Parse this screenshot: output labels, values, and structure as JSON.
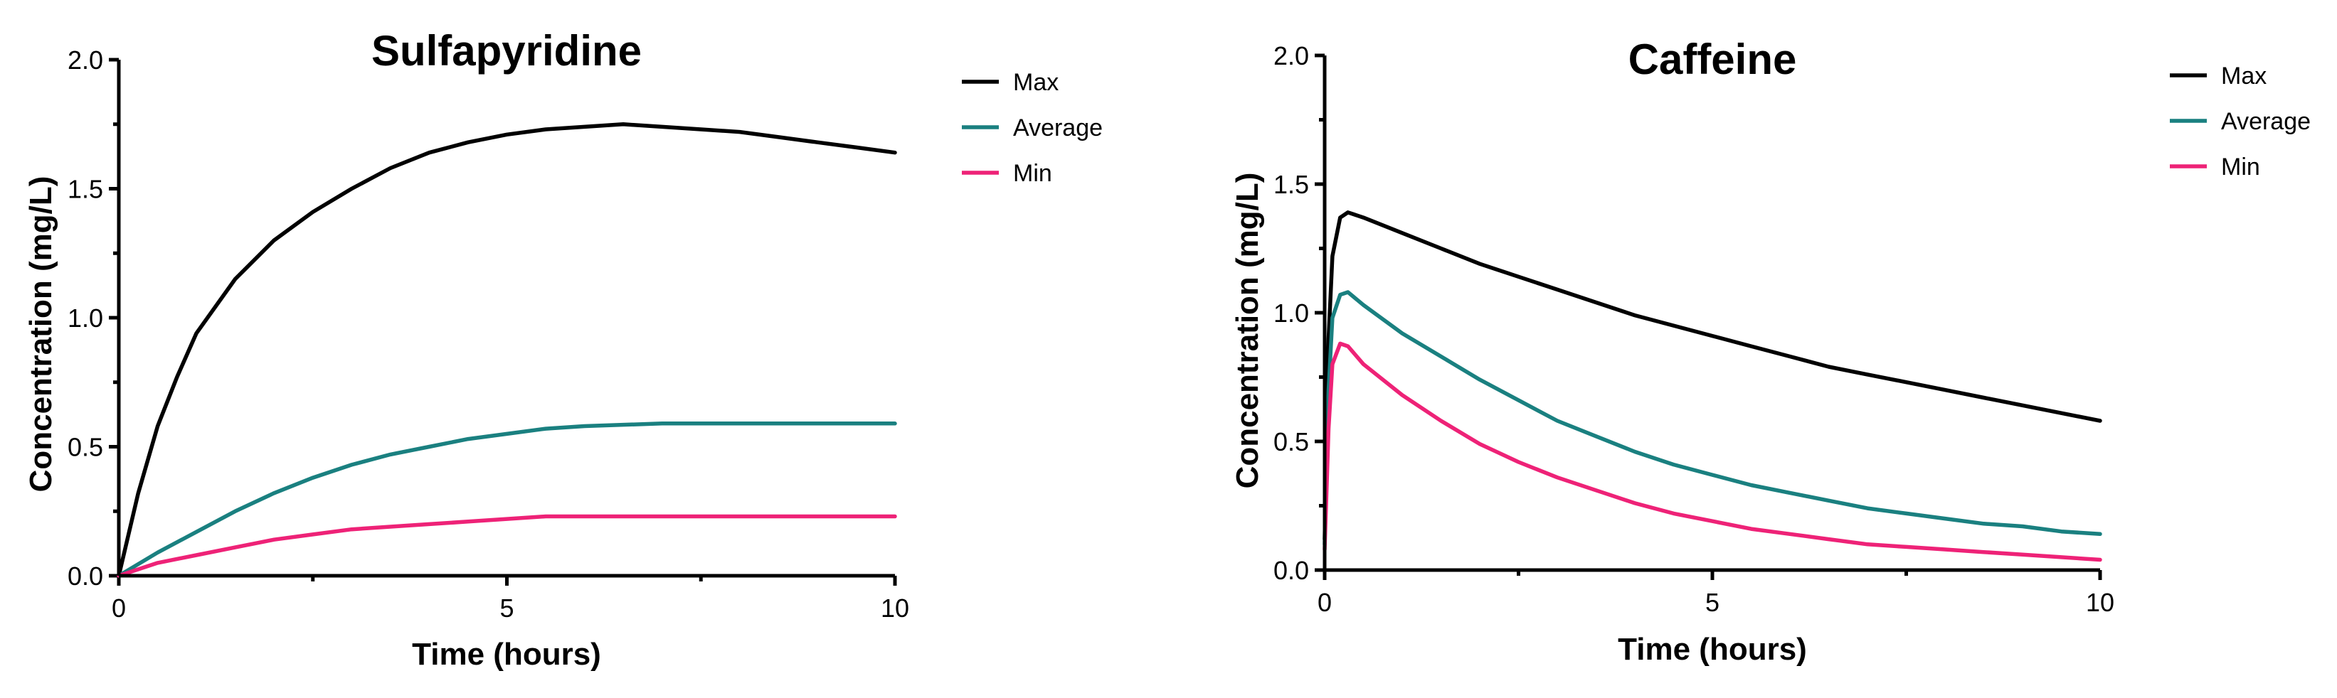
{
  "chart_data": [
    {
      "type": "line",
      "title": "Sulfapyridine",
      "xlabel": "Time (hours)",
      "ylabel": "Concentration (mg/L)",
      "xlim": [
        0,
        10
      ],
      "ylim": [
        0,
        2.0
      ],
      "xticks": [
        0,
        5,
        10
      ],
      "xtick_labels": [
        "0",
        "5",
        "10"
      ],
      "yticks": [
        0,
        0.5,
        1.0,
        1.5,
        2.0
      ],
      "ytick_labels": [
        "0.0",
        "0.5",
        "1.0",
        "1.5",
        "2.0"
      ],
      "grid": false,
      "legend_position": "top-right outside",
      "series": [
        {
          "name": "Max",
          "color": "#000000",
          "x": [
            0,
            0.25,
            0.5,
            0.75,
            1,
            1.5,
            2,
            2.5,
            3,
            3.5,
            4,
            4.5,
            5,
            5.5,
            6,
            6.5,
            7,
            7.5,
            8,
            8.5,
            9,
            9.5,
            10
          ],
          "y": [
            0,
            0.32,
            0.58,
            0.77,
            0.94,
            1.15,
            1.3,
            1.41,
            1.5,
            1.58,
            1.64,
            1.68,
            1.71,
            1.73,
            1.74,
            1.75,
            1.74,
            1.73,
            1.72,
            1.7,
            1.68,
            1.66,
            1.64
          ]
        },
        {
          "name": "Average",
          "color": "#1a8080",
          "x": [
            0,
            0.5,
            1,
            1.5,
            2,
            2.5,
            3,
            3.5,
            4,
            4.5,
            5,
            5.5,
            6,
            7,
            8,
            9,
            10
          ],
          "y": [
            0,
            0.09,
            0.17,
            0.25,
            0.32,
            0.38,
            0.43,
            0.47,
            0.5,
            0.53,
            0.55,
            0.57,
            0.58,
            0.59,
            0.59,
            0.59,
            0.59
          ]
        },
        {
          "name": "Min",
          "color": "#ee2277",
          "x": [
            0,
            0.5,
            1,
            1.5,
            2,
            2.5,
            3,
            3.5,
            4,
            4.5,
            5,
            5.5,
            6,
            7,
            8,
            9,
            10
          ],
          "y": [
            0,
            0.05,
            0.08,
            0.11,
            0.14,
            0.16,
            0.18,
            0.19,
            0.2,
            0.21,
            0.22,
            0.23,
            0.23,
            0.23,
            0.23,
            0.23,
            0.23
          ]
        }
      ]
    },
    {
      "type": "line",
      "title": "Caffeine",
      "xlabel": "Time (hours)",
      "ylabel": "Concentration (mg/L)",
      "xlim": [
        0,
        10
      ],
      "ylim": [
        0,
        2.0
      ],
      "xticks": [
        0,
        5,
        10
      ],
      "xtick_labels": [
        "0",
        "5",
        "10"
      ],
      "yticks": [
        0,
        0.5,
        1.0,
        1.5,
        2.0
      ],
      "ytick_labels": [
        "0.0",
        "0.5",
        "1.0",
        "1.5",
        "2.0"
      ],
      "grid": false,
      "legend_position": "top-right outside",
      "series": [
        {
          "name": "Max",
          "color": "#000000",
          "x": [
            0,
            0.05,
            0.1,
            0.2,
            0.3,
            0.5,
            1,
            1.5,
            2,
            2.5,
            3,
            3.5,
            4,
            4.5,
            5,
            5.5,
            6,
            6.5,
            7,
            7.5,
            8,
            8.5,
            9,
            9.5,
            10
          ],
          "y": [
            0.12,
            0.9,
            1.22,
            1.37,
            1.39,
            1.37,
            1.31,
            1.25,
            1.19,
            1.14,
            1.09,
            1.04,
            0.99,
            0.95,
            0.91,
            0.87,
            0.83,
            0.79,
            0.76,
            0.73,
            0.7,
            0.67,
            0.64,
            0.61,
            0.58
          ]
        },
        {
          "name": "Average",
          "color": "#1a8080",
          "x": [
            0,
            0.05,
            0.1,
            0.2,
            0.3,
            0.5,
            1,
            1.5,
            2,
            2.5,
            3,
            3.5,
            4,
            4.5,
            5,
            5.5,
            6,
            6.5,
            7,
            7.5,
            8,
            8.5,
            9,
            9.5,
            10
          ],
          "y": [
            0.1,
            0.7,
            0.98,
            1.07,
            1.08,
            1.03,
            0.92,
            0.83,
            0.74,
            0.66,
            0.58,
            0.52,
            0.46,
            0.41,
            0.37,
            0.33,
            0.3,
            0.27,
            0.24,
            0.22,
            0.2,
            0.18,
            0.17,
            0.15,
            0.14
          ]
        },
        {
          "name": "Min",
          "color": "#ee2277",
          "x": [
            0,
            0.05,
            0.1,
            0.2,
            0.3,
            0.5,
            1,
            1.5,
            2,
            2.5,
            3,
            3.5,
            4,
            4.5,
            5,
            5.5,
            6,
            6.5,
            7,
            7.5,
            8,
            8.5,
            9,
            9.5,
            10
          ],
          "y": [
            0.08,
            0.55,
            0.8,
            0.88,
            0.87,
            0.8,
            0.68,
            0.58,
            0.49,
            0.42,
            0.36,
            0.31,
            0.26,
            0.22,
            0.19,
            0.16,
            0.14,
            0.12,
            0.1,
            0.09,
            0.08,
            0.07,
            0.06,
            0.05,
            0.04
          ]
        }
      ]
    }
  ]
}
